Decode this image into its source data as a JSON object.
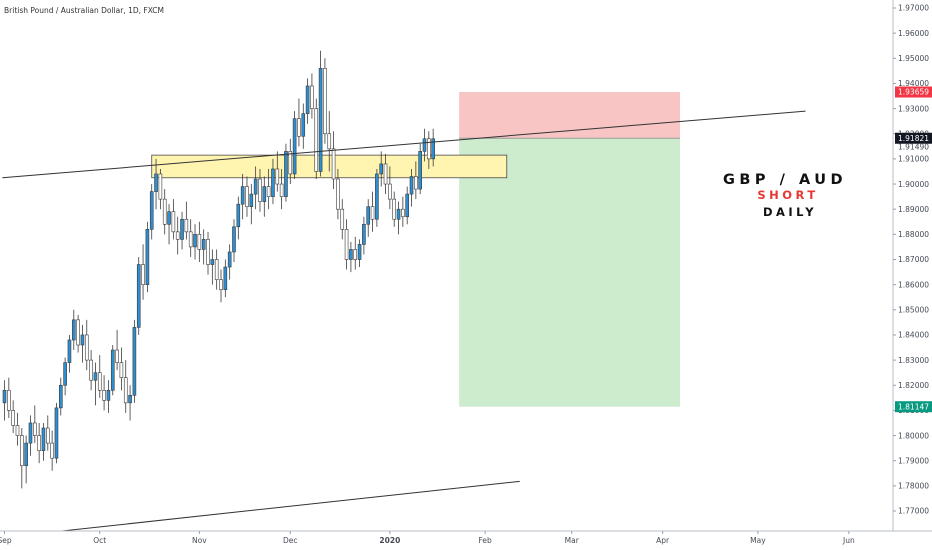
{
  "chart_data": {
    "type": "candlestick",
    "title": "British Pound / Australian Dollar, 1D, FXCM",
    "annotation": {
      "line1": "GBP / AUD",
      "line2": "SHORT",
      "line3": "DAILY"
    },
    "y_axis": {
      "side": "right",
      "ylim": [
        1.7625,
        1.9775
      ],
      "ticks": [
        "1.97000",
        "1.96000",
        "1.95000",
        "1.94000",
        "1.93000",
        "1.92000",
        "1.91000",
        "1.90000",
        "1.89000",
        "1.88000",
        "1.87000",
        "1.86000",
        "1.85000",
        "1.84000",
        "1.83000",
        "1.82000",
        "1.81000",
        "1.80000",
        "1.79000",
        "1.78000",
        "1.77000"
      ],
      "tick_values": [
        1.97,
        1.96,
        1.95,
        1.94,
        1.93,
        1.92,
        1.91,
        1.9,
        1.89,
        1.88,
        1.87,
        1.86,
        1.85,
        1.84,
        1.83,
        1.82,
        1.81,
        1.8,
        1.79,
        1.78,
        1.77
      ]
    },
    "x_axis": {
      "labels": [
        "Sep",
        "Oct",
        "Nov",
        "Dec",
        "2020",
        "Feb",
        "Mar",
        "Apr",
        "May",
        "Jun"
      ],
      "label_bars": [
        0,
        22,
        45,
        66,
        89,
        111,
        131,
        152,
        174,
        195
      ],
      "bold_label": "2020"
    },
    "price_badges": [
      {
        "value": 1.93659,
        "label": "1.93659",
        "color": "#f23645"
      },
      {
        "value": 1.91821,
        "label": "1.91821",
        "color": "#131722"
      },
      {
        "value": 1.9149,
        "label": "1.91490",
        "color": null
      },
      {
        "value": 1.81147,
        "label": "1.81147",
        "color": "#089981"
      }
    ],
    "position": {
      "kind": "short",
      "entry": 1.91821,
      "stop": 1.93659,
      "target": 1.81147,
      "start_bar": 105,
      "end_bar": 156,
      "loss_color": "#f8c4c4",
      "profit_color": "#cdebcd"
    },
    "resistance_zone": {
      "start_bar": 34,
      "end_bar": 116,
      "top": 1.9115,
      "bottom": 1.9025,
      "color": "#fff4b0"
    },
    "trendlines": [
      {
        "x1": -0.5,
        "y1": 1.9025,
        "x2": 185,
        "y2": 1.929
      },
      {
        "x1": 13,
        "y1": 1.762,
        "x2": 119,
        "y2": 1.7818
      }
    ],
    "colors": {
      "up": "#2c8fd1",
      "down": "#ffffff",
      "wick": "#3a3a3a",
      "border": "#3a3a3a"
    },
    "ohlc": [
      [
        1.813,
        1.822,
        1.806,
        1.818
      ],
      [
        1.818,
        1.823,
        1.807,
        1.81
      ],
      [
        1.81,
        1.814,
        1.801,
        1.804
      ],
      [
        1.804,
        1.809,
        1.796,
        1.8
      ],
      [
        1.8,
        1.803,
        1.779,
        1.788
      ],
      [
        1.788,
        1.8,
        1.781,
        1.797
      ],
      [
        1.797,
        1.808,
        1.792,
        1.805
      ],
      [
        1.805,
        1.812,
        1.797,
        1.8
      ],
      [
        1.8,
        1.805,
        1.789,
        1.794
      ],
      [
        1.794,
        1.805,
        1.79,
        1.803
      ],
      [
        1.803,
        1.808,
        1.794,
        1.797
      ],
      [
        1.797,
        1.802,
        1.786,
        1.791
      ],
      [
        1.791,
        1.813,
        1.789,
        1.811
      ],
      [
        1.811,
        1.823,
        1.808,
        1.82
      ],
      [
        1.82,
        1.831,
        1.816,
        1.829
      ],
      [
        1.829,
        1.84,
        1.825,
        1.838
      ],
      [
        1.838,
        1.85,
        1.834,
        1.846
      ],
      [
        1.846,
        1.848,
        1.833,
        1.836
      ],
      [
        1.836,
        1.844,
        1.829,
        1.84
      ],
      [
        1.84,
        1.846,
        1.826,
        1.83
      ],
      [
        1.83,
        1.834,
        1.818,
        1.822
      ],
      [
        1.822,
        1.829,
        1.812,
        1.825
      ],
      [
        1.825,
        1.832,
        1.815,
        1.818
      ],
      [
        1.818,
        1.824,
        1.81,
        1.814
      ],
      [
        1.814,
        1.822,
        1.809,
        1.818
      ],
      [
        1.818,
        1.836,
        1.816,
        1.834
      ],
      [
        1.834,
        1.842,
        1.826,
        1.829
      ],
      [
        1.829,
        1.835,
        1.818,
        1.823
      ],
      [
        1.823,
        1.83,
        1.809,
        1.813
      ],
      [
        1.813,
        1.82,
        1.806,
        1.816
      ],
      [
        1.816,
        1.846,
        1.813,
        1.843
      ],
      [
        1.843,
        1.871,
        1.84,
        1.868
      ],
      [
        1.868,
        1.876,
        1.854,
        1.86
      ],
      [
        1.86,
        1.885,
        1.857,
        1.882
      ],
      [
        1.882,
        1.9,
        1.878,
        1.897
      ],
      [
        1.897,
        1.91,
        1.89,
        1.904
      ],
      [
        1.904,
        1.906,
        1.89,
        1.894
      ],
      [
        1.894,
        1.898,
        1.88,
        1.884
      ],
      [
        1.884,
        1.892,
        1.876,
        1.889
      ],
      [
        1.889,
        1.894,
        1.878,
        1.881
      ],
      [
        1.881,
        1.887,
        1.872,
        1.878
      ],
      [
        1.878,
        1.889,
        1.874,
        1.886
      ],
      [
        1.886,
        1.893,
        1.878,
        1.881
      ],
      [
        1.881,
        1.886,
        1.871,
        1.875
      ],
      [
        1.875,
        1.884,
        1.87,
        1.88
      ],
      [
        1.88,
        1.885,
        1.869,
        1.874
      ],
      [
        1.874,
        1.882,
        1.868,
        1.878
      ],
      [
        1.878,
        1.881,
        1.864,
        1.868
      ],
      [
        1.868,
        1.874,
        1.86,
        1.87
      ],
      [
        1.87,
        1.874,
        1.858,
        1.862
      ],
      [
        1.862,
        1.866,
        1.853,
        1.858
      ],
      [
        1.858,
        1.87,
        1.855,
        1.867
      ],
      [
        1.867,
        1.876,
        1.862,
        1.873
      ],
      [
        1.873,
        1.886,
        1.869,
        1.883
      ],
      [
        1.883,
        1.895,
        1.878,
        1.892
      ],
      [
        1.892,
        1.904,
        1.886,
        1.899
      ],
      [
        1.899,
        1.903,
        1.887,
        1.891
      ],
      [
        1.891,
        1.9,
        1.884,
        1.896
      ],
      [
        1.896,
        1.907,
        1.89,
        1.902
      ],
      [
        1.902,
        1.906,
        1.889,
        1.893
      ],
      [
        1.893,
        1.903,
        1.887,
        1.899
      ],
      [
        1.899,
        1.906,
        1.89,
        1.895
      ],
      [
        1.895,
        1.91,
        1.892,
        1.906
      ],
      [
        1.906,
        1.913,
        1.897,
        1.9
      ],
      [
        1.9,
        1.906,
        1.89,
        1.895
      ],
      [
        1.895,
        1.916,
        1.893,
        1.913
      ],
      [
        1.913,
        1.918,
        1.9,
        1.904
      ],
      [
        1.904,
        1.929,
        1.902,
        1.926
      ],
      [
        1.926,
        1.934,
        1.915,
        1.919
      ],
      [
        1.919,
        1.932,
        1.914,
        1.928
      ],
      [
        1.928,
        1.942,
        1.924,
        1.939
      ],
      [
        1.939,
        1.944,
        1.926,
        1.93
      ],
      [
        1.93,
        1.934,
        1.902,
        1.905
      ],
      [
        1.905,
        1.953,
        1.903,
        1.946
      ],
      [
        1.946,
        1.95,
        1.916,
        1.92
      ],
      [
        1.92,
        1.929,
        1.905,
        1.914
      ],
      [
        1.914,
        1.921,
        1.898,
        1.902
      ],
      [
        1.902,
        1.906,
        1.886,
        1.89
      ],
      [
        1.89,
        1.894,
        1.878,
        1.882
      ],
      [
        1.882,
        1.886,
        1.866,
        1.87
      ],
      [
        1.87,
        1.877,
        1.865,
        1.874
      ],
      [
        1.874,
        1.879,
        1.866,
        1.87
      ],
      [
        1.87,
        1.878,
        1.867,
        1.876
      ],
      [
        1.876,
        1.887,
        1.872,
        1.884
      ],
      [
        1.884,
        1.894,
        1.879,
        1.891
      ],
      [
        1.891,
        1.897,
        1.881,
        1.886
      ],
      [
        1.886,
        1.906,
        1.883,
        1.904
      ],
      [
        1.904,
        1.913,
        1.899,
        1.908
      ],
      [
        1.908,
        1.912,
        1.896,
        1.9
      ],
      [
        1.9,
        1.907,
        1.89,
        1.894
      ],
      [
        1.894,
        1.897,
        1.883,
        1.886
      ],
      [
        1.886,
        1.893,
        1.88,
        1.89
      ],
      [
        1.89,
        1.895,
        1.883,
        1.887
      ],
      [
        1.887,
        1.899,
        1.884,
        1.896
      ],
      [
        1.896,
        1.906,
        1.891,
        1.903
      ],
      [
        1.903,
        1.909,
        1.894,
        1.898
      ],
      [
        1.898,
        1.916,
        1.896,
        1.913
      ],
      [
        1.913,
        1.922,
        1.909,
        1.918
      ],
      [
        1.918,
        1.921,
        1.906,
        1.91
      ],
      [
        1.91,
        1.922,
        1.907,
        1.918
      ]
    ]
  }
}
